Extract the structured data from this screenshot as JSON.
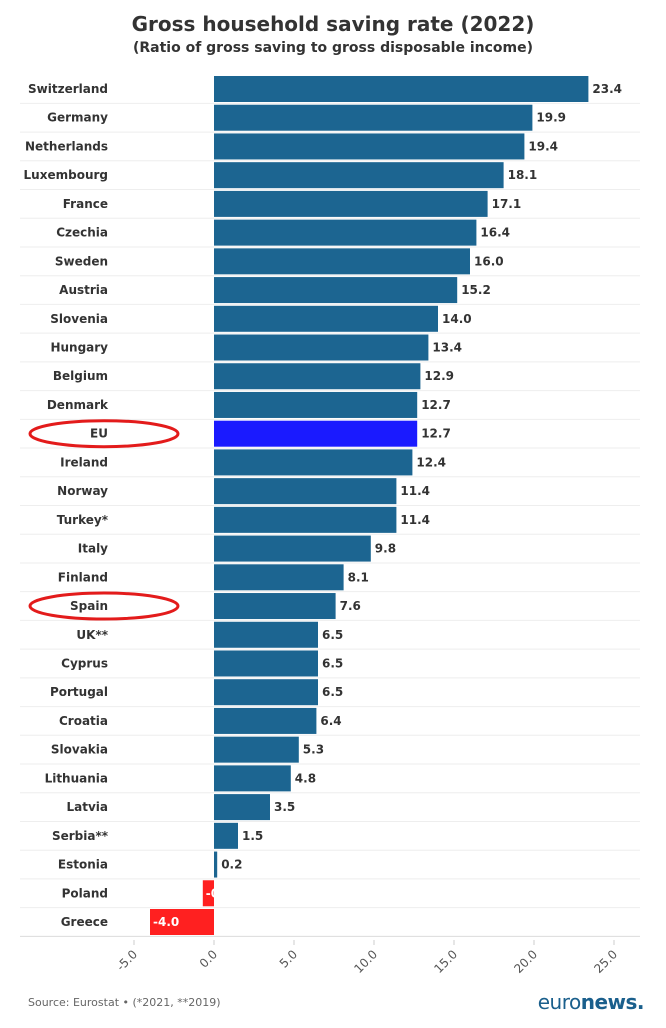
{
  "chart_data": {
    "type": "bar",
    "orientation": "horizontal",
    "title": "Gross household saving rate (2022)",
    "subtitle": "(Ratio of gross saving to gross disposable income)",
    "categories": [
      "Switzerland",
      "Germany",
      "Netherlands",
      "Luxembourg",
      "France",
      "Czechia",
      "Sweden",
      "Austria",
      "Slovenia",
      "Hungary",
      "Belgium",
      "Denmark",
      "EU",
      "Ireland",
      "Norway",
      "Turkey*",
      "Italy",
      "Finland",
      "Spain",
      "UK**",
      "Cyprus",
      "Portugal",
      "Croatia",
      "Slovakia",
      "Lithuania",
      "Latvia",
      "Serbia**",
      "Estonia",
      "Poland",
      "Greece"
    ],
    "values": [
      23.4,
      19.9,
      19.4,
      18.1,
      17.1,
      16.4,
      16.0,
      15.2,
      14.0,
      13.4,
      12.9,
      12.7,
      12.7,
      12.4,
      11.4,
      11.4,
      9.8,
      8.1,
      7.6,
      6.5,
      6.5,
      6.5,
      6.4,
      5.3,
      4.8,
      3.5,
      1.5,
      0.2,
      -0.7,
      -4.0
    ],
    "value_labels": [
      "23.4",
      "19.9",
      "19.4",
      "18.1",
      "17.1",
      "16.4",
      "16.0",
      "15.2",
      "14.0",
      "13.4",
      "12.9",
      "12.7",
      "12.7",
      "12.4",
      "11.4",
      "11.4",
      "9.8",
      "8.1",
      "7.6",
      "6.5",
      "6.5",
      "6.5",
      "6.4",
      "5.3",
      "4.8",
      "3.5",
      "1.5",
      "0.2",
      "-0.7",
      "-4.0"
    ],
    "xlim": [
      -5,
      25
    ],
    "x_ticks": [
      "-5.0",
      "0.0",
      "5.0",
      "10.0",
      "15.0",
      "20.0",
      "25.0"
    ],
    "grid": true,
    "highlighted": [
      "EU",
      "Spain"
    ],
    "colors": {
      "default": "#1c6591",
      "highlight": "#1a1aff",
      "negative": "#ff2020",
      "circle": "#e31b1b"
    }
  },
  "footer": {
    "source": "Source: Eurostat • (*2021, **2019)",
    "logo_light": "euro",
    "logo_bold": "news."
  }
}
